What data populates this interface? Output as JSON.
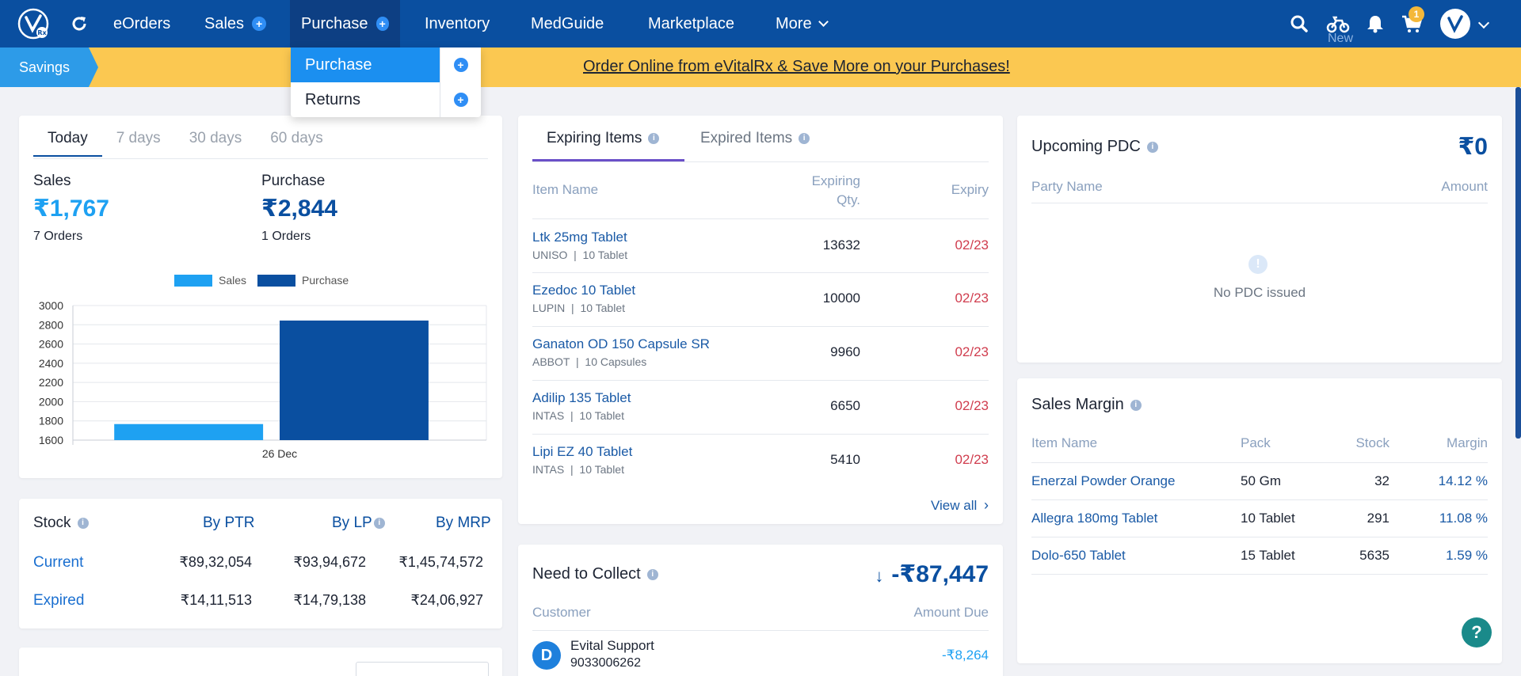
{
  "nav": {
    "items": [
      {
        "label": "eOrders"
      },
      {
        "label": "Sales"
      },
      {
        "label": "Purchase"
      },
      {
        "label": "Inventory"
      },
      {
        "label": "MedGuide"
      },
      {
        "label": "Marketplace"
      },
      {
        "label": "More"
      }
    ],
    "new_label": "New",
    "cart_count": "1"
  },
  "banner": {
    "tag": "Savings",
    "link_text": "Order Online from eVitalRx & Save More on your Purchases!"
  },
  "purchase_menu": {
    "items": [
      {
        "label": "Purchase",
        "active": true
      },
      {
        "label": "Returns",
        "active": false
      }
    ]
  },
  "summary": {
    "tabs": [
      "Today",
      "7 days",
      "30 days",
      "60 days"
    ],
    "active_tab": "Today",
    "sales_label": "Sales",
    "sales_value": "₹1,767",
    "sales_orders": "7 Orders",
    "purchase_label": "Purchase",
    "purchase_value": "₹2,844",
    "purchase_orders": "1 Orders"
  },
  "chart_data": {
    "type": "bar",
    "categories": [
      "26 Dec"
    ],
    "series": [
      {
        "name": "Sales",
        "values": [
          1767
        ],
        "color": "#1ea1f2"
      },
      {
        "name": "Purchase",
        "values": [
          2844
        ],
        "color": "#0a4fa0"
      }
    ],
    "ylim": [
      1600,
      3000
    ],
    "yticks": [
      1600,
      1800,
      2000,
      2200,
      2400,
      2600,
      2800,
      3000
    ],
    "legend": "top",
    "grid": true
  },
  "stock": {
    "title": "Stock",
    "columns": [
      "By PTR",
      "By LP",
      "By MRP"
    ],
    "rows": [
      {
        "label": "Current",
        "values": [
          "₹89,32,054",
          "₹93,94,672",
          "₹1,45,74,572"
        ]
      },
      {
        "label": "Expired",
        "values": [
          "₹14,11,513",
          "₹14,79,138",
          "₹24,06,927"
        ]
      }
    ]
  },
  "expiring": {
    "tabs": [
      "Expiring Items",
      "Expired Items"
    ],
    "headers": {
      "name": "Item Name",
      "qty_line1": "Expiring",
      "qty_line2": "Qty.",
      "expiry": "Expiry"
    },
    "rows": [
      {
        "name": "Ltk 25mg Tablet",
        "mfr": "UNISO",
        "pack": "10 Tablet",
        "qty": "13632",
        "expiry": "02/23"
      },
      {
        "name": "Ezedoc 10 Tablet",
        "mfr": "LUPIN",
        "pack": "10 Tablet",
        "qty": "10000",
        "expiry": "02/23"
      },
      {
        "name": "Ganaton OD 150 Capsule SR",
        "mfr": "ABBOT",
        "pack": "10 Capsules",
        "qty": "9960",
        "expiry": "02/23"
      },
      {
        "name": "Adilip 135 Tablet",
        "mfr": "INTAS",
        "pack": "10 Tablet",
        "qty": "6650",
        "expiry": "02/23"
      },
      {
        "name": "Lipi EZ 40 Tablet",
        "mfr": "INTAS",
        "pack": "10 Tablet",
        "qty": "5410",
        "expiry": "02/23"
      }
    ],
    "view_all": "View all"
  },
  "collect": {
    "title": "Need to Collect",
    "total": "-₹87,447",
    "headers": {
      "customer": "Customer",
      "amount": "Amount Due"
    },
    "rows": [
      {
        "initial": "D",
        "name": "Evital Support",
        "phone": "9033006262",
        "amount": "-₹8,264"
      }
    ]
  },
  "pdc": {
    "title": "Upcoming PDC",
    "total": "₹0",
    "headers": {
      "party": "Party Name",
      "amount": "Amount"
    },
    "empty": "No PDC issued"
  },
  "margin": {
    "title": "Sales Margin",
    "headers": {
      "name": "Item Name",
      "pack": "Pack",
      "stock": "Stock",
      "margin": "Margin"
    },
    "rows": [
      {
        "name": "Enerzal Powder Orange",
        "pack": "50 Gm",
        "stock": "32",
        "margin": "14.12 %"
      },
      {
        "name": "Allegra 180mg Tablet",
        "pack": "10 Tablet",
        "stock": "291",
        "margin": "11.08 %"
      },
      {
        "name": "Dolo-650 Tablet",
        "pack": "15 Tablet",
        "stock": "5635",
        "margin": "1.59 %"
      }
    ]
  },
  "help": "?",
  "colors": {
    "nav": "#0a4fa0",
    "banner": "#fbc851",
    "accent": "#1ea1f2"
  }
}
